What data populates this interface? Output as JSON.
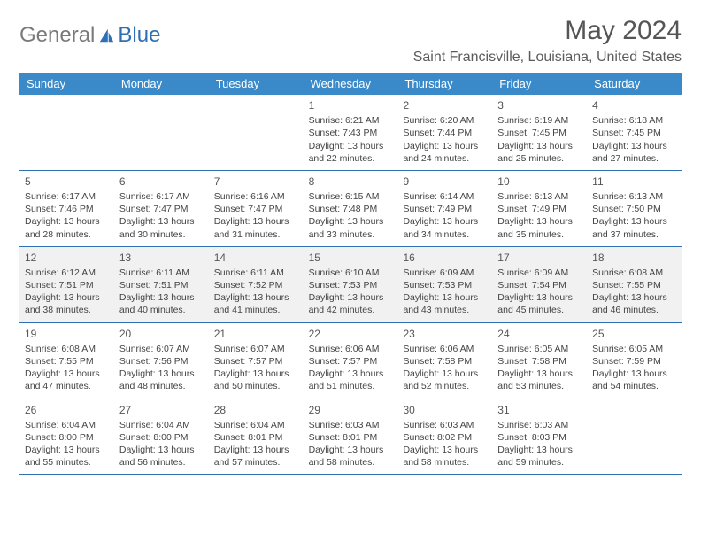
{
  "brand": {
    "part1": "General",
    "part2": "Blue"
  },
  "title": "May 2024",
  "location": "Saint Francisville, Louisiana, United States",
  "colors": {
    "header_bg": "#3a8ac9",
    "header_text": "#ffffff",
    "row_border": "#2f6fb3",
    "shaded_bg": "#f1f1f1",
    "text": "#444444",
    "brand_gray": "#7a7a7a",
    "brand_blue": "#2f6fb3"
  },
  "day_headers": [
    "Sunday",
    "Monday",
    "Tuesday",
    "Wednesday",
    "Thursday",
    "Friday",
    "Saturday"
  ],
  "weeks": [
    {
      "shaded": false,
      "days": [
        {
          "num": "",
          "sunrise": "",
          "sunset": "",
          "daylight": ""
        },
        {
          "num": "",
          "sunrise": "",
          "sunset": "",
          "daylight": ""
        },
        {
          "num": "",
          "sunrise": "",
          "sunset": "",
          "daylight": ""
        },
        {
          "num": "1",
          "sunrise": "Sunrise: 6:21 AM",
          "sunset": "Sunset: 7:43 PM",
          "daylight": "Daylight: 13 hours and 22 minutes."
        },
        {
          "num": "2",
          "sunrise": "Sunrise: 6:20 AM",
          "sunset": "Sunset: 7:44 PM",
          "daylight": "Daylight: 13 hours and 24 minutes."
        },
        {
          "num": "3",
          "sunrise": "Sunrise: 6:19 AM",
          "sunset": "Sunset: 7:45 PM",
          "daylight": "Daylight: 13 hours and 25 minutes."
        },
        {
          "num": "4",
          "sunrise": "Sunrise: 6:18 AM",
          "sunset": "Sunset: 7:45 PM",
          "daylight": "Daylight: 13 hours and 27 minutes."
        }
      ]
    },
    {
      "shaded": false,
      "days": [
        {
          "num": "5",
          "sunrise": "Sunrise: 6:17 AM",
          "sunset": "Sunset: 7:46 PM",
          "daylight": "Daylight: 13 hours and 28 minutes."
        },
        {
          "num": "6",
          "sunrise": "Sunrise: 6:17 AM",
          "sunset": "Sunset: 7:47 PM",
          "daylight": "Daylight: 13 hours and 30 minutes."
        },
        {
          "num": "7",
          "sunrise": "Sunrise: 6:16 AM",
          "sunset": "Sunset: 7:47 PM",
          "daylight": "Daylight: 13 hours and 31 minutes."
        },
        {
          "num": "8",
          "sunrise": "Sunrise: 6:15 AM",
          "sunset": "Sunset: 7:48 PM",
          "daylight": "Daylight: 13 hours and 33 minutes."
        },
        {
          "num": "9",
          "sunrise": "Sunrise: 6:14 AM",
          "sunset": "Sunset: 7:49 PM",
          "daylight": "Daylight: 13 hours and 34 minutes."
        },
        {
          "num": "10",
          "sunrise": "Sunrise: 6:13 AM",
          "sunset": "Sunset: 7:49 PM",
          "daylight": "Daylight: 13 hours and 35 minutes."
        },
        {
          "num": "11",
          "sunrise": "Sunrise: 6:13 AM",
          "sunset": "Sunset: 7:50 PM",
          "daylight": "Daylight: 13 hours and 37 minutes."
        }
      ]
    },
    {
      "shaded": true,
      "days": [
        {
          "num": "12",
          "sunrise": "Sunrise: 6:12 AM",
          "sunset": "Sunset: 7:51 PM",
          "daylight": "Daylight: 13 hours and 38 minutes."
        },
        {
          "num": "13",
          "sunrise": "Sunrise: 6:11 AM",
          "sunset": "Sunset: 7:51 PM",
          "daylight": "Daylight: 13 hours and 40 minutes."
        },
        {
          "num": "14",
          "sunrise": "Sunrise: 6:11 AM",
          "sunset": "Sunset: 7:52 PM",
          "daylight": "Daylight: 13 hours and 41 minutes."
        },
        {
          "num": "15",
          "sunrise": "Sunrise: 6:10 AM",
          "sunset": "Sunset: 7:53 PM",
          "daylight": "Daylight: 13 hours and 42 minutes."
        },
        {
          "num": "16",
          "sunrise": "Sunrise: 6:09 AM",
          "sunset": "Sunset: 7:53 PM",
          "daylight": "Daylight: 13 hours and 43 minutes."
        },
        {
          "num": "17",
          "sunrise": "Sunrise: 6:09 AM",
          "sunset": "Sunset: 7:54 PM",
          "daylight": "Daylight: 13 hours and 45 minutes."
        },
        {
          "num": "18",
          "sunrise": "Sunrise: 6:08 AM",
          "sunset": "Sunset: 7:55 PM",
          "daylight": "Daylight: 13 hours and 46 minutes."
        }
      ]
    },
    {
      "shaded": false,
      "days": [
        {
          "num": "19",
          "sunrise": "Sunrise: 6:08 AM",
          "sunset": "Sunset: 7:55 PM",
          "daylight": "Daylight: 13 hours and 47 minutes."
        },
        {
          "num": "20",
          "sunrise": "Sunrise: 6:07 AM",
          "sunset": "Sunset: 7:56 PM",
          "daylight": "Daylight: 13 hours and 48 minutes."
        },
        {
          "num": "21",
          "sunrise": "Sunrise: 6:07 AM",
          "sunset": "Sunset: 7:57 PM",
          "daylight": "Daylight: 13 hours and 50 minutes."
        },
        {
          "num": "22",
          "sunrise": "Sunrise: 6:06 AM",
          "sunset": "Sunset: 7:57 PM",
          "daylight": "Daylight: 13 hours and 51 minutes."
        },
        {
          "num": "23",
          "sunrise": "Sunrise: 6:06 AM",
          "sunset": "Sunset: 7:58 PM",
          "daylight": "Daylight: 13 hours and 52 minutes."
        },
        {
          "num": "24",
          "sunrise": "Sunrise: 6:05 AM",
          "sunset": "Sunset: 7:58 PM",
          "daylight": "Daylight: 13 hours and 53 minutes."
        },
        {
          "num": "25",
          "sunrise": "Sunrise: 6:05 AM",
          "sunset": "Sunset: 7:59 PM",
          "daylight": "Daylight: 13 hours and 54 minutes."
        }
      ]
    },
    {
      "shaded": false,
      "days": [
        {
          "num": "26",
          "sunrise": "Sunrise: 6:04 AM",
          "sunset": "Sunset: 8:00 PM",
          "daylight": "Daylight: 13 hours and 55 minutes."
        },
        {
          "num": "27",
          "sunrise": "Sunrise: 6:04 AM",
          "sunset": "Sunset: 8:00 PM",
          "daylight": "Daylight: 13 hours and 56 minutes."
        },
        {
          "num": "28",
          "sunrise": "Sunrise: 6:04 AM",
          "sunset": "Sunset: 8:01 PM",
          "daylight": "Daylight: 13 hours and 57 minutes."
        },
        {
          "num": "29",
          "sunrise": "Sunrise: 6:03 AM",
          "sunset": "Sunset: 8:01 PM",
          "daylight": "Daylight: 13 hours and 58 minutes."
        },
        {
          "num": "30",
          "sunrise": "Sunrise: 6:03 AM",
          "sunset": "Sunset: 8:02 PM",
          "daylight": "Daylight: 13 hours and 58 minutes."
        },
        {
          "num": "31",
          "sunrise": "Sunrise: 6:03 AM",
          "sunset": "Sunset: 8:03 PM",
          "daylight": "Daylight: 13 hours and 59 minutes."
        },
        {
          "num": "",
          "sunrise": "",
          "sunset": "",
          "daylight": ""
        }
      ]
    }
  ]
}
